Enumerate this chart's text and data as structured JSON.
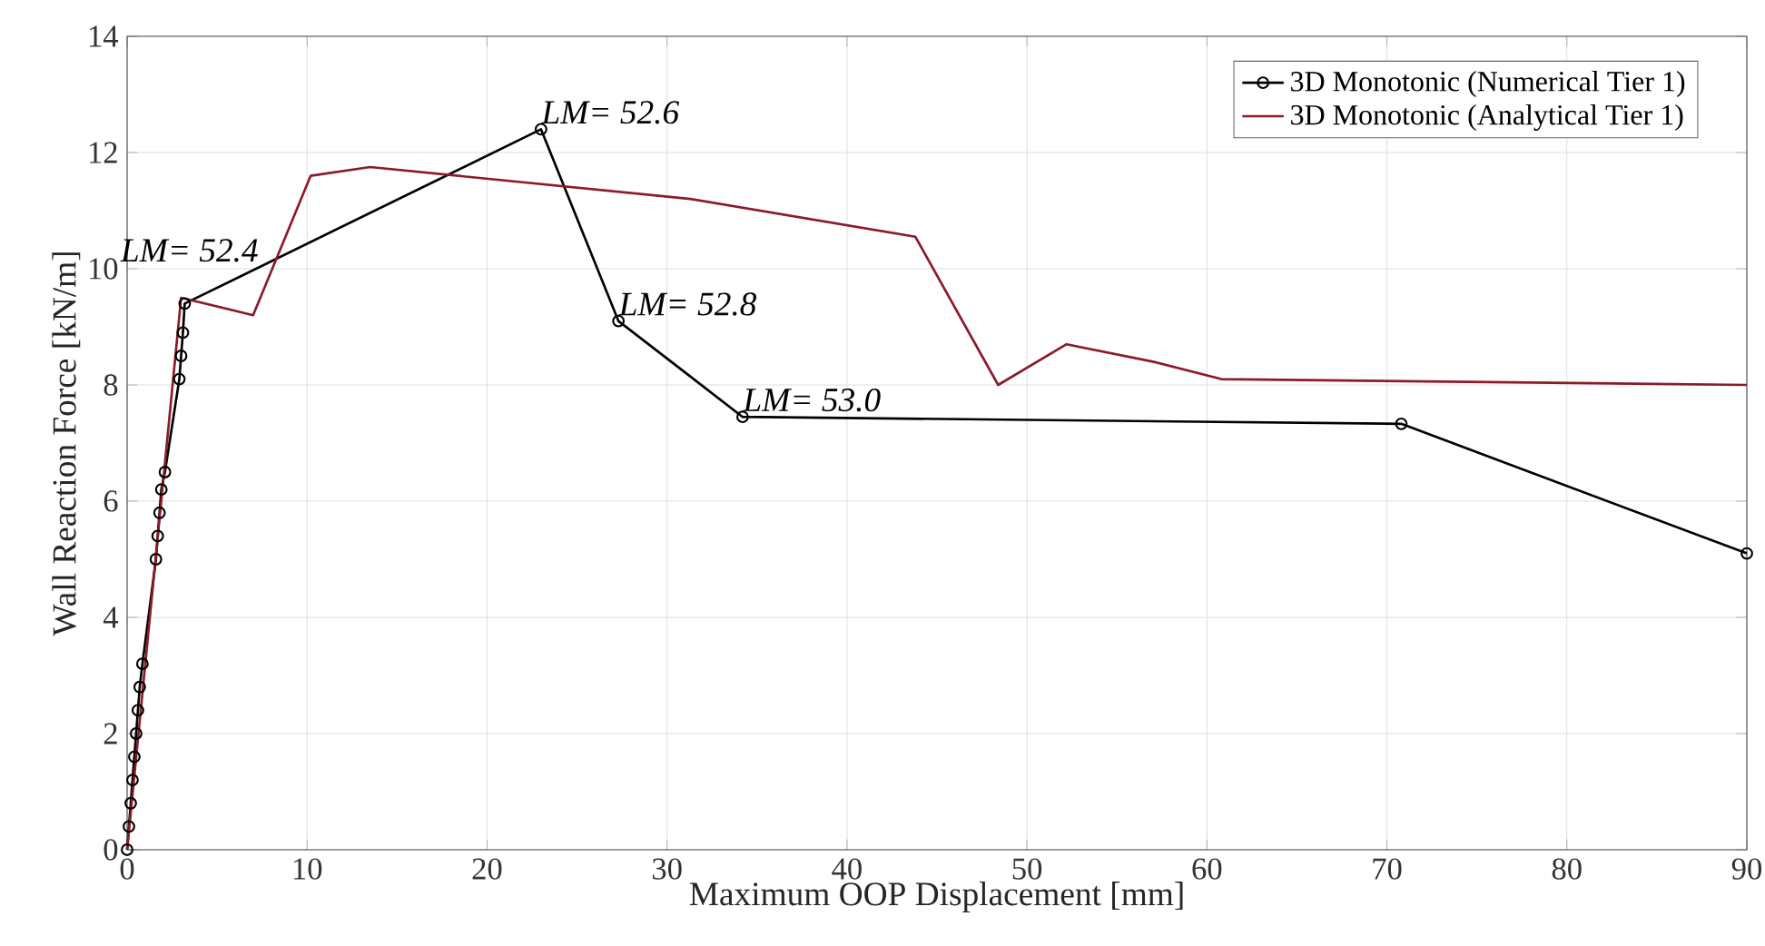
{
  "chart_data": {
    "type": "line",
    "xlabel": "Maximum OOP Displacement [mm]",
    "ylabel": "Wall Reaction Force [kN/m]",
    "xlim": [
      0,
      90
    ],
    "ylim": [
      0,
      14
    ],
    "xticks": [
      0,
      10,
      20,
      30,
      40,
      50,
      60,
      70,
      80,
      90
    ],
    "yticks": [
      0,
      2,
      4,
      6,
      8,
      10,
      12,
      14
    ],
    "grid": true,
    "legend": "top right",
    "series": [
      {
        "name": "3D Monotonic (Numerical Tier 1)",
        "color": "#000000",
        "marker": "circle",
        "x": [
          0,
          0.1,
          0.2,
          0.3,
          0.4,
          0.5,
          0.6,
          0.7,
          0.85,
          1.6,
          1.7,
          1.8,
          1.9,
          2.1,
          2.9,
          3.0,
          3.1,
          3.2,
          23.0,
          27.3,
          34.2,
          70.8,
          90
        ],
        "values": [
          0,
          0.4,
          0.8,
          1.2,
          1.6,
          2.0,
          2.4,
          2.8,
          3.2,
          5.0,
          5.4,
          5.8,
          6.2,
          6.5,
          8.1,
          8.5,
          8.9,
          9.4,
          12.4,
          9.1,
          7.45,
          7.33,
          5.1
        ]
      },
      {
        "name": "3D Monotonic (Analytical Tier 1)",
        "color": "#8b1a2b",
        "x": [
          0,
          3.0,
          7.0,
          10.2,
          13.5,
          31.3,
          43.8,
          48.4,
          52.2,
          57,
          60.8,
          90
        ],
        "values": [
          0,
          9.5,
          9.2,
          11.6,
          11.75,
          11.2,
          10.55,
          8.0,
          8.7,
          8.4,
          8.1,
          8.0
        ]
      }
    ],
    "annotations": [
      {
        "text": "LM= 52.4",
        "x": 3.2,
        "y": 9.4
      },
      {
        "text": "LM= 52.6",
        "x": 23.0,
        "y": 12.4
      },
      {
        "text": "LM= 52.8",
        "x": 27.3,
        "y": 9.1
      },
      {
        "text": "LM= 53.0",
        "x": 34.2,
        "y": 7.45
      }
    ]
  }
}
